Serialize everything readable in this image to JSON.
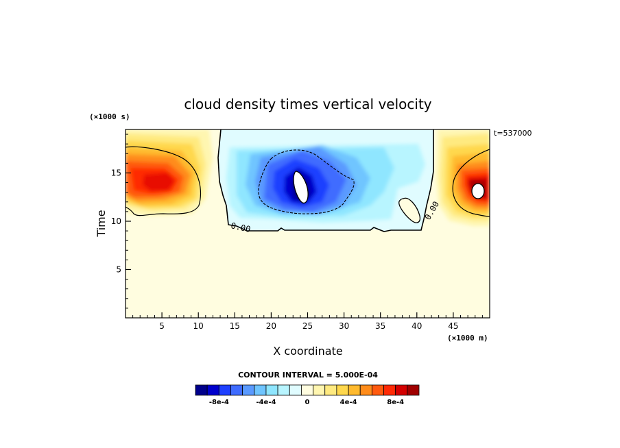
{
  "chart_data": {
    "type": "heatmap",
    "title": "cloud density times vertical velocity",
    "xlabel": "X coordinate",
    "ylabel": "Time",
    "x_unit": "(×1000 m)",
    "y_unit": "(×1000 s)",
    "time_label": "t=537000",
    "xlim": [
      0,
      50
    ],
    "ylim": [
      0,
      19.5
    ],
    "x_ticks": [
      5,
      10,
      15,
      20,
      25,
      30,
      35,
      40,
      45
    ],
    "y_ticks": [
      5,
      10,
      15
    ],
    "contour_interval": "CONTOUR INTERVAL = 5.000E-04",
    "contour_labels": [
      "0.00",
      "0.00"
    ],
    "colorbar": {
      "labels": [
        "-8e-4",
        "-4e-4",
        "0",
        "4e-4",
        "8e-4"
      ],
      "colors": [
        "#00008b",
        "#0000cd",
        "#1e40ff",
        "#3f6cff",
        "#5a9aff",
        "#6fc5ff",
        "#8fe6ff",
        "#b8f5ff",
        "#e0fcff",
        "#fffde0",
        "#fff6b0",
        "#ffea80",
        "#ffd84d",
        "#ffba2e",
        "#ff8c1a",
        "#ff5a0f",
        "#ff2a05",
        "#d40000",
        "#a00000"
      ]
    },
    "features": [
      {
        "name": "warm-core-left",
        "x": 6,
        "y": 14.5,
        "level": 7
      },
      {
        "name": "warm-core-right",
        "x": 48,
        "y": 13.5,
        "level": 9
      },
      {
        "name": "negative-core-center",
        "x": 24,
        "y": 14,
        "level": -8
      }
    ]
  },
  "colors": {
    "background": "#fffde0",
    "frame": "#000000"
  }
}
